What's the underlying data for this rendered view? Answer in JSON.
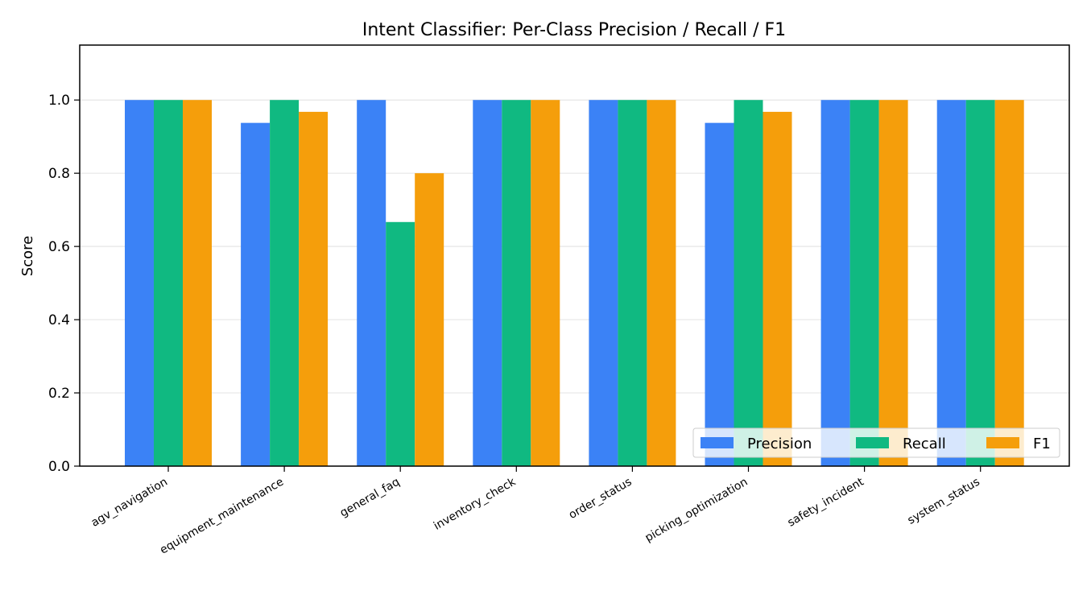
{
  "chart_data": {
    "type": "bar",
    "title": "Intent Classifier: Per-Class Precision / Recall / F1",
    "xlabel": "",
    "ylabel": "Score",
    "ylim": [
      0,
      1.15
    ],
    "yticks": [
      "0.0",
      "0.2",
      "0.4",
      "0.6",
      "0.8",
      "1.0"
    ],
    "grid": "y",
    "legend_position": "bottom-right",
    "categories": [
      "agv_navigation",
      "equipment_maintenance",
      "general_faq",
      "inventory_check",
      "order_status",
      "picking_optimization",
      "safety_incident",
      "system_status"
    ],
    "series": [
      {
        "name": "Precision",
        "color": "#3b82f6",
        "values": [
          1.0,
          0.9375,
          1.0,
          1.0,
          1.0,
          0.9375,
          1.0,
          1.0
        ]
      },
      {
        "name": "Recall",
        "color": "#10b981",
        "values": [
          1.0,
          1.0,
          0.6667,
          1.0,
          1.0,
          1.0,
          1.0,
          1.0
        ]
      },
      {
        "name": "F1",
        "color": "#f59e0b",
        "values": [
          1.0,
          0.9677,
          0.8,
          1.0,
          1.0,
          0.9677,
          1.0,
          1.0
        ]
      }
    ]
  }
}
